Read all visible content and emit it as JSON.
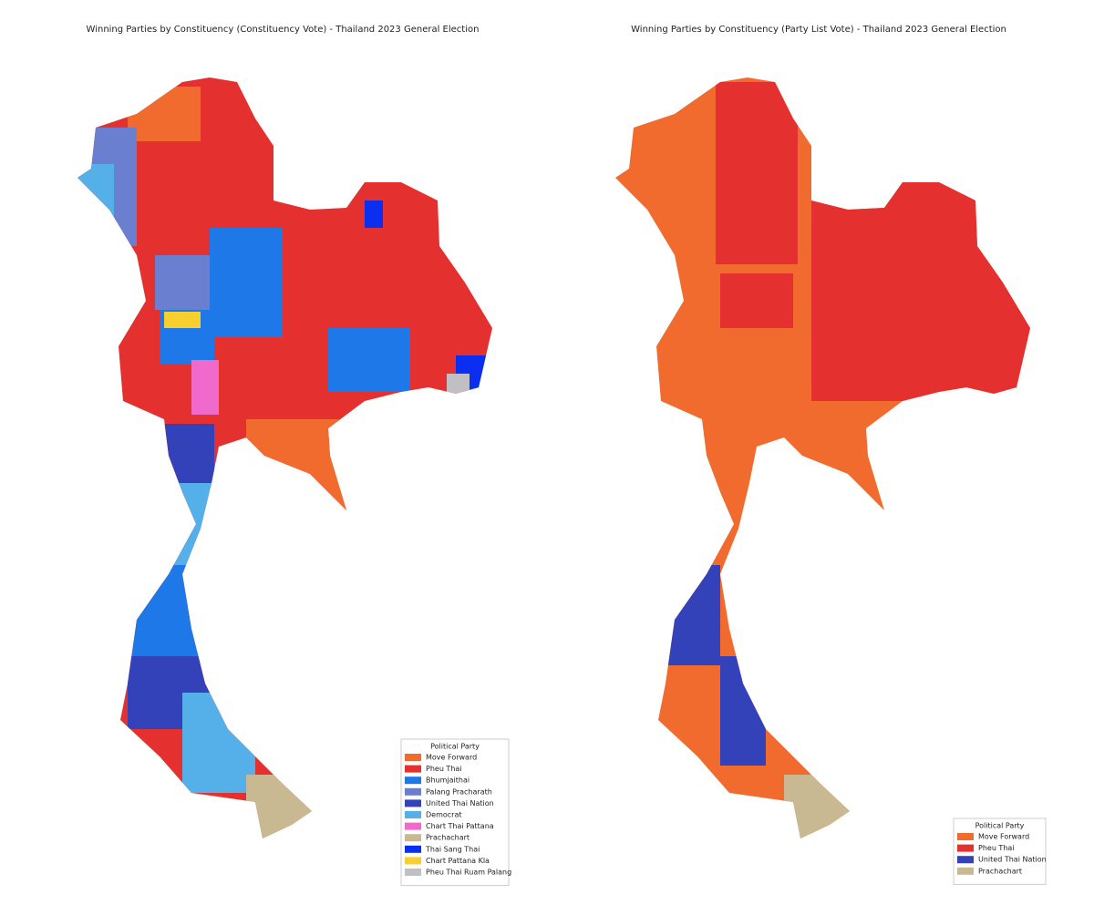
{
  "maps": [
    {
      "title": "Winning Parties by Constituency (Constituency Vote) - Thailand 2023 General Election",
      "legend": {
        "title": "Political Party",
        "items": [
          {
            "label": "Move Forward",
            "color": "#f26b2e"
          },
          {
            "label": "Pheu Thai",
            "color": "#e53030"
          },
          {
            "label": "Bhumjaithai",
            "color": "#1f78e8"
          },
          {
            "label": "Palang Pracharath",
            "color": "#6a7fcf"
          },
          {
            "label": "United Thai Nation",
            "color": "#3342b8"
          },
          {
            "label": "Democrat",
            "color": "#55b0ea"
          },
          {
            "label": "Chart Thai Pattana",
            "color": "#f06acb"
          },
          {
            "label": "Prachachart",
            "color": "#c9b992"
          },
          {
            "label": "Thai Sang Thai",
            "color": "#0a2ff0"
          },
          {
            "label": "Chart Pattana Kla",
            "color": "#f7d030"
          },
          {
            "label": "Pheu Thai Ruam Palang",
            "color": "#c0c0c4"
          }
        ]
      }
    },
    {
      "title": "Winning Parties by Constituency (Party List Vote) - Thailand 2023 General Election",
      "legend": {
        "title": "Political Party",
        "items": [
          {
            "label": "Move Forward",
            "color": "#f26b2e"
          },
          {
            "label": "Pheu Thai",
            "color": "#e53030"
          },
          {
            "label": "United Thai Nation",
            "color": "#3342b8"
          },
          {
            "label": "Prachachart",
            "color": "#c9b992"
          }
        ]
      }
    }
  ]
}
